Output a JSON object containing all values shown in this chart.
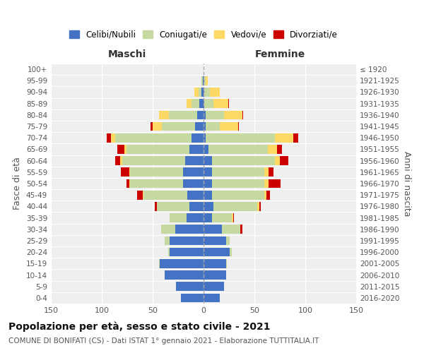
{
  "age_groups": [
    "0-4",
    "5-9",
    "10-14",
    "15-19",
    "20-24",
    "25-29",
    "30-34",
    "35-39",
    "40-44",
    "45-49",
    "50-54",
    "55-59",
    "60-64",
    "65-69",
    "70-74",
    "75-79",
    "80-84",
    "85-89",
    "90-94",
    "95-99",
    "100+"
  ],
  "birth_years": [
    "2016-2020",
    "2011-2015",
    "2006-2010",
    "2001-2005",
    "1996-2000",
    "1991-1995",
    "1986-1990",
    "1981-1985",
    "1976-1980",
    "1971-1975",
    "1966-1970",
    "1961-1965",
    "1956-1960",
    "1951-1955",
    "1946-1950",
    "1941-1945",
    "1936-1940",
    "1931-1935",
    "1926-1930",
    "1921-1925",
    "≤ 1920"
  ],
  "colors": {
    "celibe": "#4472C4",
    "coniugato": "#C5D9A0",
    "vedovo": "#FFD966",
    "divorziato": "#CC0000"
  },
  "maschi": {
    "celibe": [
      22,
      27,
      38,
      43,
      33,
      33,
      28,
      17,
      14,
      16,
      20,
      20,
      18,
      14,
      12,
      8,
      6,
      4,
      2,
      1,
      0
    ],
    "coniugato": [
      0,
      0,
      0,
      1,
      2,
      5,
      14,
      16,
      32,
      43,
      52,
      52,
      62,
      62,
      75,
      33,
      28,
      8,
      3,
      1,
      0
    ],
    "vedovo": [
      0,
      0,
      0,
      0,
      0,
      0,
      0,
      0,
      0,
      1,
      1,
      1,
      2,
      2,
      4,
      9,
      10,
      5,
      4,
      0,
      0
    ],
    "divorziato": [
      0,
      0,
      0,
      0,
      0,
      0,
      0,
      0,
      2,
      5,
      3,
      8,
      5,
      7,
      4,
      2,
      0,
      0,
      0,
      0,
      0
    ]
  },
  "femmine": {
    "nubile": [
      16,
      20,
      22,
      22,
      26,
      22,
      18,
      8,
      10,
      8,
      8,
      8,
      8,
      5,
      2,
      2,
      2,
      1,
      1,
      1,
      0
    ],
    "coniugata": [
      0,
      0,
      0,
      1,
      2,
      4,
      18,
      20,
      43,
      52,
      52,
      52,
      62,
      58,
      68,
      14,
      18,
      9,
      5,
      1,
      0
    ],
    "vedova": [
      0,
      0,
      0,
      0,
      0,
      0,
      0,
      1,
      2,
      2,
      4,
      4,
      5,
      9,
      18,
      18,
      18,
      14,
      10,
      2,
      0
    ],
    "divorziata": [
      0,
      0,
      0,
      0,
      0,
      0,
      2,
      1,
      1,
      3,
      12,
      5,
      8,
      5,
      5,
      1,
      1,
      1,
      0,
      0,
      0
    ]
  },
  "title": "Popolazione per età, sesso e stato civile - 2021",
  "subtitle": "COMUNE DI BONIFATI (CS) - Dati ISTAT 1° gennaio 2021 - Elaborazione TUTTITALIA.IT",
  "xlabel_left": "Maschi",
  "xlabel_right": "Femmine",
  "ylabel_left": "Fasce di età",
  "ylabel_right": "Anni di nascita",
  "xlim": 150,
  "legend_labels": [
    "Celibi/Nubili",
    "Coniugati/e",
    "Vedovi/e",
    "Divorziati/e"
  ],
  "background_color": "#efefef"
}
